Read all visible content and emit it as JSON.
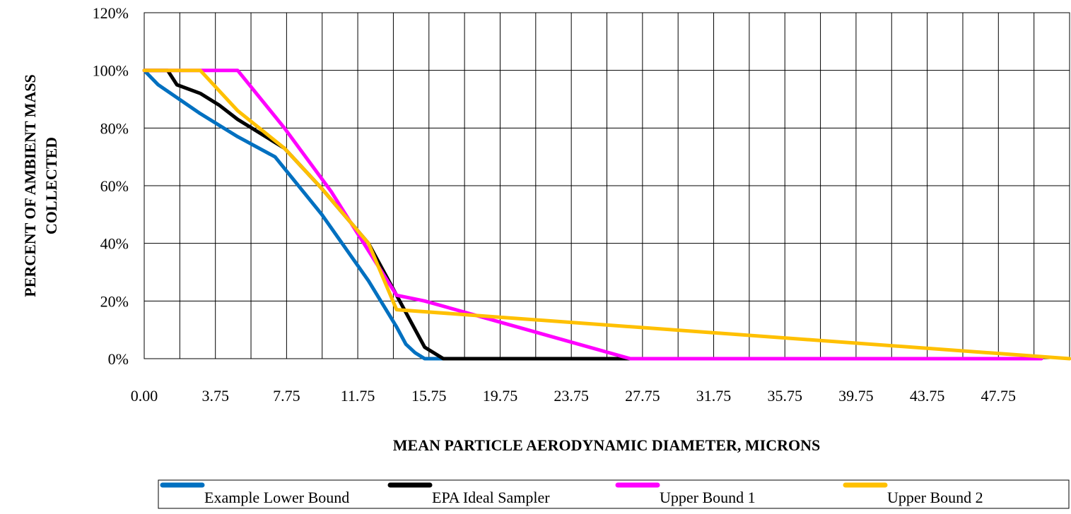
{
  "chart_data": {
    "type": "line",
    "xlabel": "MEAN PARTICLE AERODYNAMIC DIAMETER, MICRONS",
    "ylabel": [
      "PERCENT OF AMBIENT MASS",
      "COLLECTED"
    ],
    "x_tick_labels": [
      "0.00",
      "3.75",
      "7.75",
      "11.75",
      "15.75",
      "19.75",
      "23.75",
      "27.75",
      "31.75",
      "35.75",
      "39.75",
      "43.75",
      "47.75"
    ],
    "y_tick_labels": [
      "0%",
      "20%",
      "40%",
      "60%",
      "80%",
      "100%",
      "120%"
    ],
    "xlim": [
      0,
      49.5
    ],
    "ylim": [
      0,
      120
    ],
    "grid": true,
    "legend_position": "bottom",
    "series": [
      {
        "name": "Example Lower Bound",
        "color": "#0070c0",
        "points": [
          [
            0,
            100
          ],
          [
            0.75,
            95
          ],
          [
            3,
            85
          ],
          [
            5,
            77
          ],
          [
            7,
            70
          ],
          [
            9.5,
            50
          ],
          [
            12,
            27
          ],
          [
            13.5,
            11
          ],
          [
            14,
            5
          ],
          [
            14.5,
            2
          ],
          [
            15,
            0
          ],
          [
            16,
            0
          ]
        ]
      },
      {
        "name": "EPA Ideal Sampler",
        "color": "#000000",
        "points": [
          [
            0,
            100
          ],
          [
            1.25,
            100
          ],
          [
            1.75,
            95
          ],
          [
            3,
            92
          ],
          [
            4,
            88
          ],
          [
            5,
            83
          ],
          [
            7.5,
            73
          ],
          [
            9.5,
            59
          ],
          [
            12,
            40
          ],
          [
            13.5,
            22
          ],
          [
            14.25,
            13
          ],
          [
            15,
            4
          ],
          [
            16,
            0
          ],
          [
            26,
            0
          ]
        ]
      },
      {
        "name": "Upper Bound 1",
        "color": "#ff00ff",
        "points": [
          [
            0,
            100
          ],
          [
            5,
            100
          ],
          [
            7.5,
            80
          ],
          [
            10,
            58
          ],
          [
            13.5,
            22
          ],
          [
            15,
            20
          ],
          [
            26,
            0
          ],
          [
            48,
            0
          ]
        ]
      },
      {
        "name": "Upper Bound 2",
        "color": "#ffc000",
        "points": [
          [
            0,
            100
          ],
          [
            3,
            100
          ],
          [
            5,
            86
          ],
          [
            7.5,
            73
          ],
          [
            9.5,
            59
          ],
          [
            12,
            40
          ],
          [
            13.5,
            17
          ],
          [
            49.5,
            0
          ]
        ]
      }
    ]
  }
}
